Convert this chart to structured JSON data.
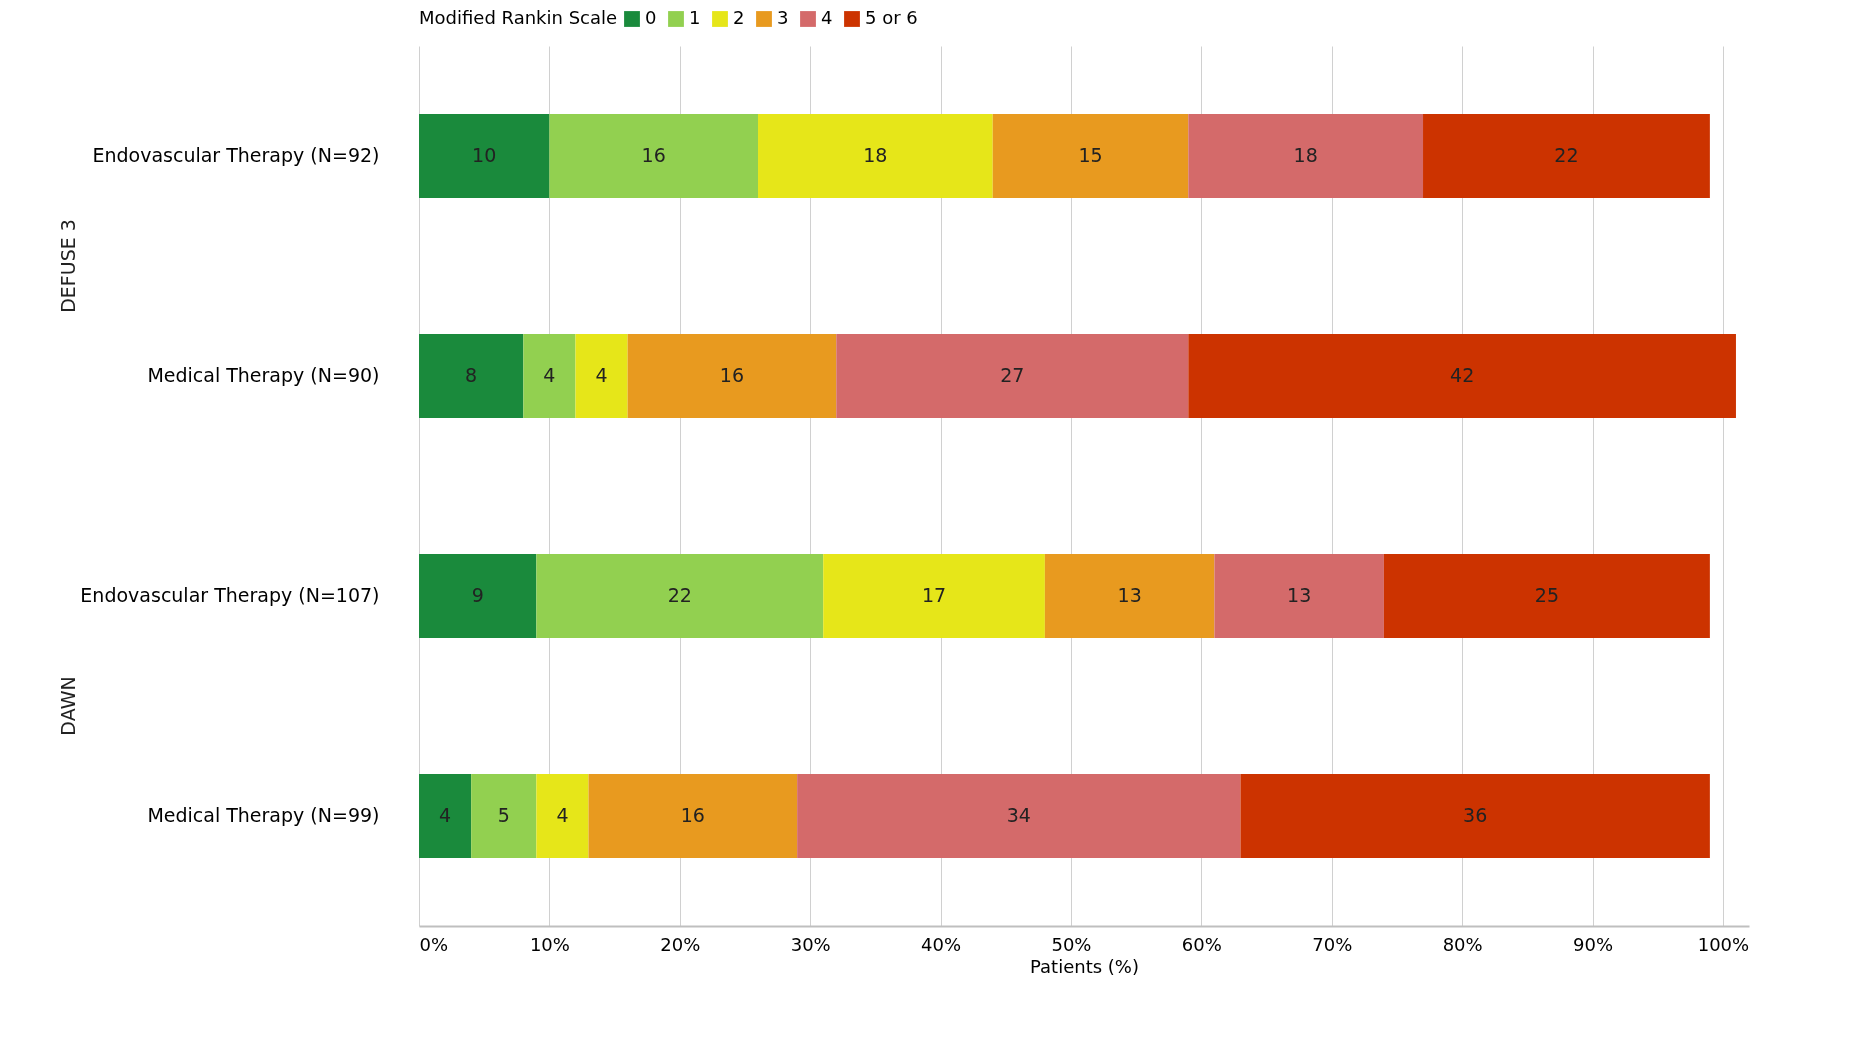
{
  "chart_data": {
    "type": "bar",
    "orientation": "horizontal",
    "stacked": true,
    "data_labels": true,
    "categories": [
      "Endovascular Therapy (N=92)",
      "Medical Therapy (N=90)",
      "Endovascular Therapy (N=107)",
      "Medical Therapy (N=99)"
    ],
    "series": [
      {
        "name": "0",
        "color": "#1a8a3c",
        "values": [
          10,
          8,
          9,
          4
        ]
      },
      {
        "name": "1",
        "color": "#92d050",
        "values": [
          16,
          4,
          22,
          5
        ]
      },
      {
        "name": "2",
        "color": "#e6e619",
        "values": [
          18,
          4,
          17,
          4
        ]
      },
      {
        "name": "3",
        "color": "#e89a1f",
        "values": [
          15,
          16,
          13,
          16
        ]
      },
      {
        "name": "4",
        "color": "#d46a6a",
        "values": [
          18,
          27,
          13,
          34
        ]
      },
      {
        "name": "5 or 6",
        "color": "#cc3300",
        "values": [
          22,
          42,
          25,
          36
        ]
      }
    ],
    "xlim": [
      0,
      102
    ],
    "xticks": [
      {
        "value": 0,
        "label": "0%"
      },
      {
        "value": 10,
        "label": "10%"
      },
      {
        "value": 20,
        "label": "20%"
      },
      {
        "value": 30,
        "label": "30%"
      },
      {
        "value": 40,
        "label": "40%"
      },
      {
        "value": 50,
        "label": "50%"
      },
      {
        "value": 60,
        "label": "60%"
      },
      {
        "value": 70,
        "label": "70%"
      },
      {
        "value": 80,
        "label": "80%"
      },
      {
        "value": 90,
        "label": "90%"
      },
      {
        "value": 100,
        "label": "100%"
      }
    ],
    "xlabel": "Patients (%)",
    "legend_title": "Modified Rankin Scale",
    "legend": "top",
    "grid": "x",
    "annotations": [
      "DEFUSE 3",
      "DAWN"
    ]
  }
}
